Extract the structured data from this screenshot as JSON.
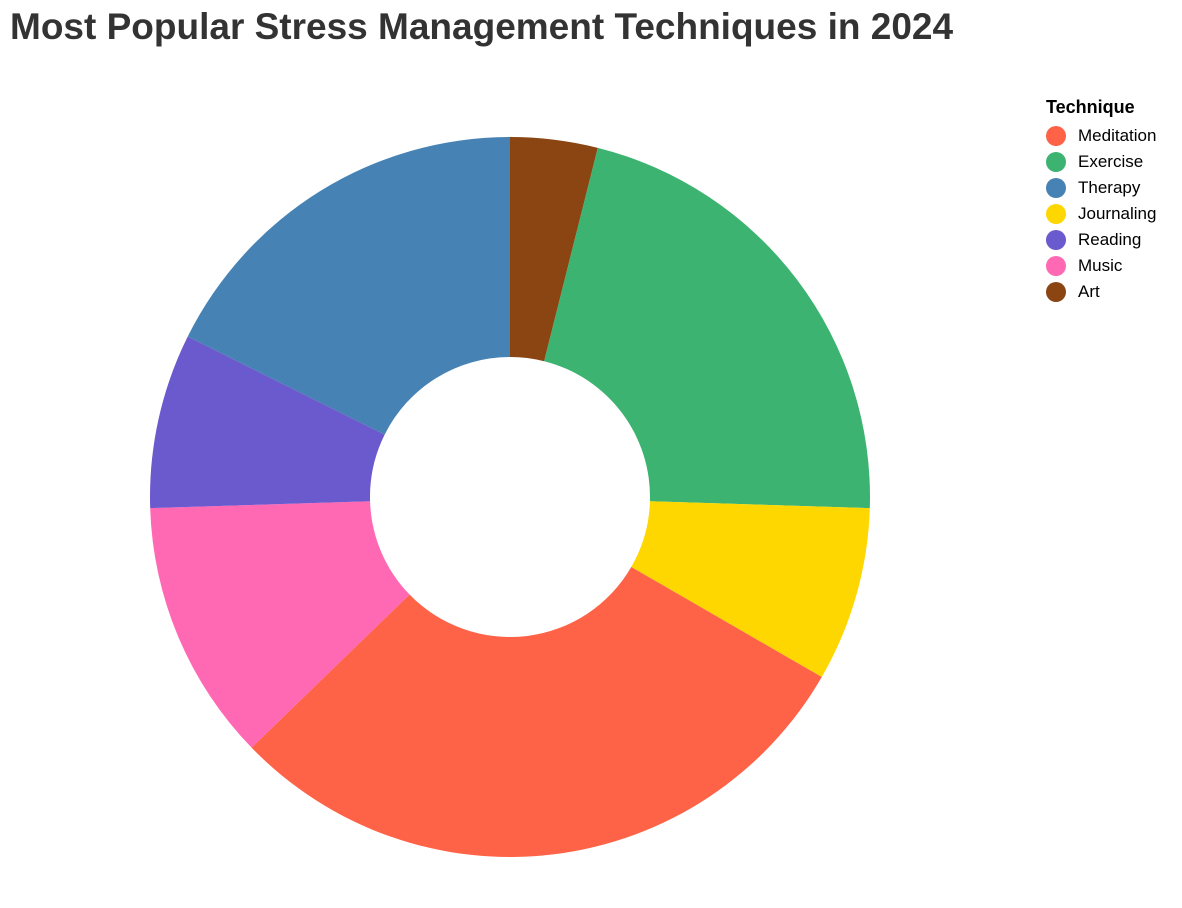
{
  "chart_data": {
    "type": "pie",
    "title": "Most Popular Stress Management Techniques in 2024",
    "legend_title": "Technique",
    "legend_position": "top-right",
    "donut": true,
    "categories": [
      "Meditation",
      "Exercise",
      "Therapy",
      "Journaling",
      "Reading",
      "Music",
      "Art"
    ],
    "values": [
      30,
      22,
      18,
      8,
      8,
      12,
      4
    ],
    "colors": [
      "#FF6347",
      "#3CB371",
      "#4682B4",
      "#FFD700",
      "#6A5ACD",
      "#FF69B4",
      "#8B4513"
    ],
    "ring_order": [
      "Art",
      "Exercise",
      "Journaling",
      "Meditation",
      "Music",
      "Reading",
      "Therapy"
    ]
  }
}
